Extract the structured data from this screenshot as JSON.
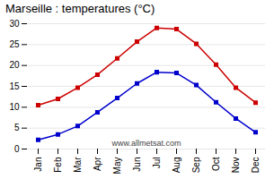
{
  "chart_data": {
    "type": "line",
    "title": "Marseille : temperatures (°C)",
    "categories": [
      "Jan",
      "Feb",
      "Mar",
      "Apr",
      "May",
      "Jun",
      "Jul",
      "Aug",
      "Sep",
      "Oct",
      "Nov",
      "Dec"
    ],
    "series": [
      {
        "color": "#cc0000",
        "marker": "square",
        "values": [
          10.5,
          12.0,
          14.7,
          17.8,
          21.7,
          25.7,
          29.0,
          28.7,
          25.2,
          20.2,
          14.7,
          11.1
        ]
      },
      {
        "color": "#0000cc",
        "marker": "square",
        "values": [
          2.2,
          3.5,
          5.5,
          8.8,
          12.2,
          15.7,
          18.4,
          18.2,
          15.3,
          11.2,
          7.3,
          4.0
        ]
      }
    ],
    "ylim": [
      0,
      30
    ],
    "yticks": [
      0,
      5,
      10,
      15,
      20,
      25,
      30
    ],
    "grid": true,
    "annotations": [
      "www.allmetsat.com"
    ]
  }
}
